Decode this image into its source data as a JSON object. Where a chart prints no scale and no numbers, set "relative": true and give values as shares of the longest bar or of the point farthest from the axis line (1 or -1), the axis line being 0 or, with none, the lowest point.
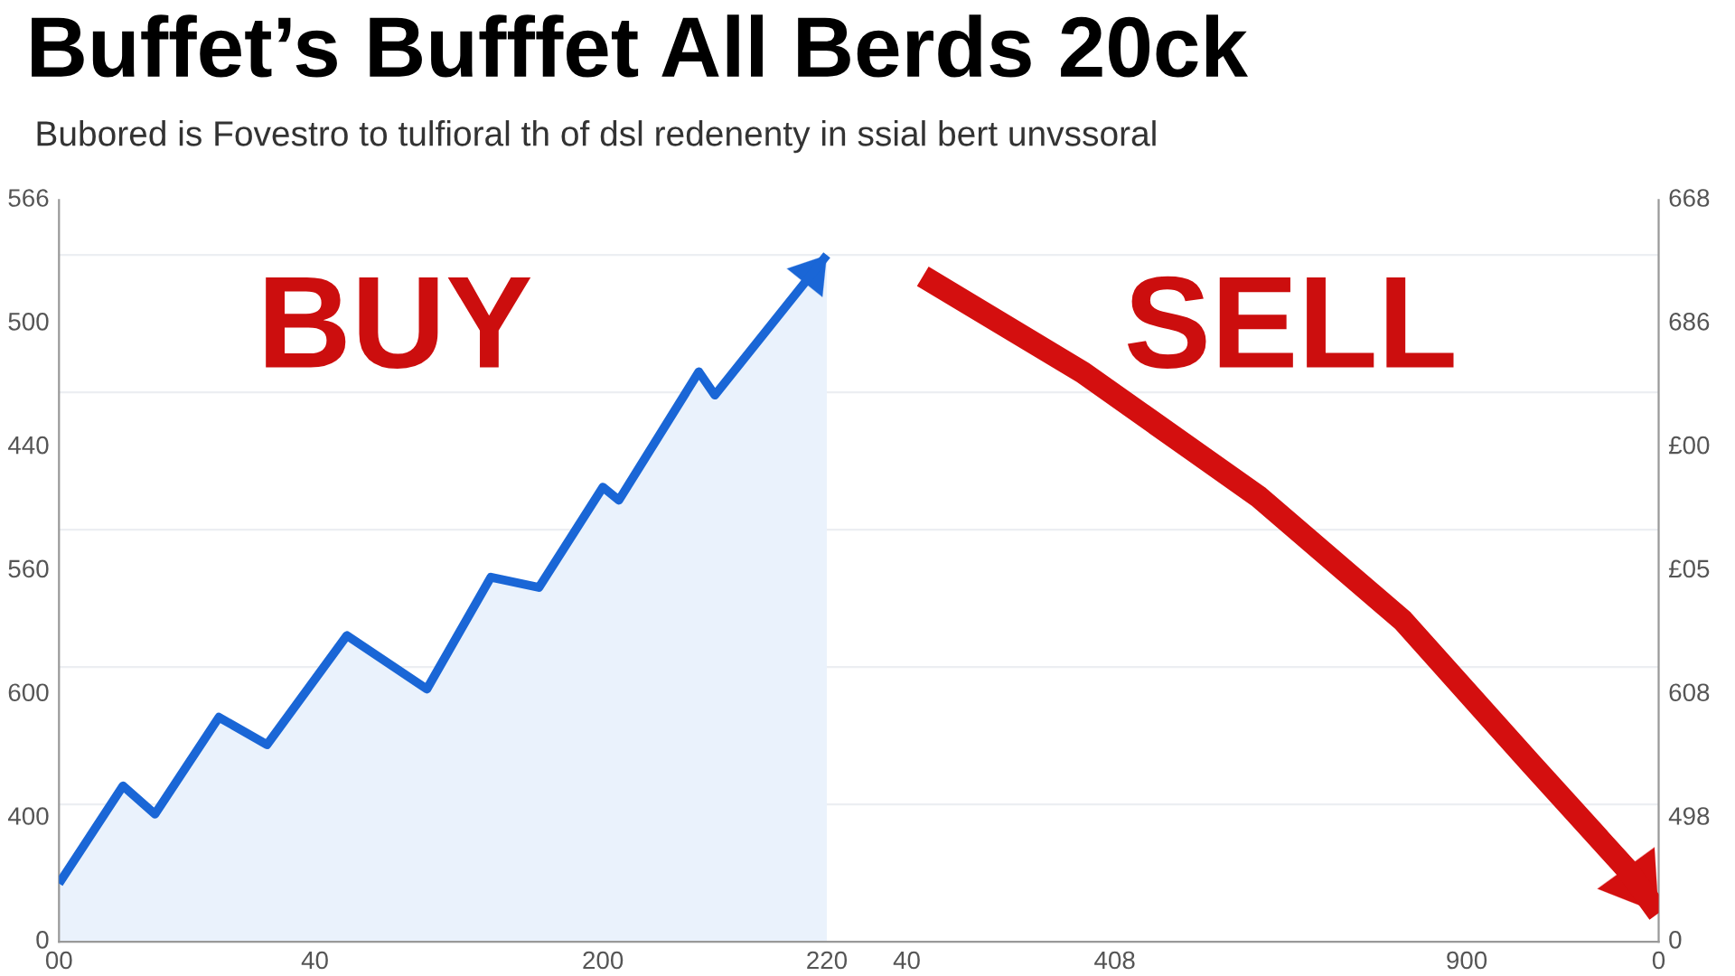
{
  "chart_data": {
    "type": "line",
    "relative": true,
    "title": "Buffet’s Bufffet All Berds 20ck",
    "subtitle": "Bubored is Fovestro to tulfioral th of dsl redenenty in ssial bert unvssoral",
    "annotations": [
      "BUY",
      "SELL",
      "566",
      "500",
      "440",
      "560",
      "600",
      "400",
      "0",
      "668",
      "686",
      "£00",
      "£05",
      "608",
      "498",
      "0"
    ],
    "categories": [
      "00",
      null,
      null,
      null,
      null,
      null,
      null,
      null,
      null,
      null,
      null,
      null,
      null,
      null,
      null,
      null,
      "40",
      null,
      null,
      null,
      null,
      null,
      null,
      null,
      null,
      null,
      null,
      null,
      null,
      null,
      null,
      null,
      null,
      null,
      "200",
      null,
      null,
      null,
      null,
      null,
      null,
      null,
      null,
      null,
      null,
      null,
      null,
      null,
      "220",
      null,
      null,
      null,
      null,
      "40",
      null,
      null,
      null,
      null,
      null,
      null,
      null,
      null,
      null,
      null,
      null,
      null,
      "408",
      null,
      null,
      null,
      null,
      null,
      null,
      null,
      null,
      null,
      null,
      null,
      null,
      null,
      null,
      null,
      null,
      null,
      null,
      null,
      null,
      null,
      "900",
      null,
      null,
      null,
      null,
      null,
      null,
      null,
      null,
      null,
      null,
      null,
      "0"
    ],
    "series": [
      {
        "type": "area",
        "color": "#1a66d6",
        "values": [
          0.085,
          null,
          null,
          null,
          0.227,
          null,
          0.186,
          null,
          null,
          null,
          0.327,
          null,
          null,
          0.287,
          null,
          null,
          null,
          null,
          0.446,
          null,
          null,
          null,
          null,
          0.368,
          null,
          null,
          null,
          0.531,
          null,
          null,
          0.516,
          null,
          null,
          null,
          0.662,
          0.643,
          null,
          null,
          null,
          null,
          0.83,
          0.796,
          null,
          null,
          null,
          null,
          null,
          null,
          1,
          null,
          null,
          null,
          null,
          null,
          null,
          null,
          null,
          null,
          null,
          null,
          null,
          null,
          null,
          null,
          null,
          null,
          null,
          null,
          null,
          null,
          null,
          null,
          null,
          null,
          null,
          null,
          null,
          null,
          null,
          null,
          null,
          null,
          null,
          null,
          null,
          null,
          null,
          null,
          null,
          null,
          null,
          null,
          null,
          null,
          null,
          null,
          null,
          null,
          null,
          null,
          null
        ]
      },
      {
        "color": "#d40f0f",
        "values": [
          null,
          null,
          null,
          null,
          null,
          null,
          null,
          null,
          null,
          null,
          null,
          null,
          null,
          null,
          null,
          null,
          null,
          null,
          null,
          null,
          null,
          null,
          null,
          null,
          null,
          null,
          null,
          null,
          null,
          null,
          null,
          null,
          null,
          null,
          null,
          null,
          null,
          null,
          null,
          null,
          null,
          null,
          null,
          null,
          null,
          null,
          null,
          null,
          null,
          null,
          null,
          null,
          null,
          null,
          0.969,
          null,
          null,
          null,
          null,
          null,
          null,
          null,
          null,
          null,
          0.829,
          null,
          null,
          null,
          null,
          null,
          null,
          null,
          null,
          null,
          null,
          0.648,
          null,
          null,
          null,
          null,
          null,
          null,
          null,
          null,
          0.468,
          null,
          null,
          null,
          null,
          null,
          null,
          null,
          0.26,
          null,
          null,
          null,
          null,
          null,
          0.106,
          null,
          0.042
        ]
      }
    ],
    "grid": "y",
    "marker": "none",
    "line_style": "solid",
    "legend": false
  }
}
